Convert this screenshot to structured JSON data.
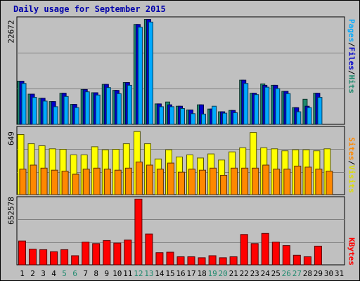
{
  "chart_data": {
    "type": "bar",
    "title": "Daily usage for September 2015",
    "categories": [
      "1",
      "2",
      "3",
      "4",
      "5",
      "6",
      "7",
      "8",
      "9",
      "10",
      "11",
      "12",
      "13",
      "14",
      "15",
      "16",
      "17",
      "18",
      "19",
      "20",
      "21",
      "22",
      "23",
      "24",
      "25",
      "26",
      "27",
      "28",
      "29",
      "30",
      "31"
    ],
    "weekend_days": [
      "5",
      "6",
      "12",
      "13",
      "19",
      "20",
      "26",
      "27"
    ],
    "panels": [
      {
        "name": "hits-files-pages",
        "ymax": 22672,
        "ymax_label": "22672",
        "labels": [
          {
            "text": "Pages",
            "color": "#00aaff"
          },
          {
            "text": "/",
            "color": "#000000"
          },
          {
            "text": "Files",
            "color": "#0000cc"
          },
          {
            "text": "/",
            "color": "#000000"
          },
          {
            "text": "Hits",
            "color": "#1f8a6e"
          }
        ],
        "series": [
          {
            "name": "Hits",
            "color": "#1f8a6e",
            "values": [
              9300,
              6500,
              5600,
              4900,
              6700,
              4300,
              7500,
              6800,
              8600,
              7300,
              9000,
              21500,
              22600,
              4400,
              4800,
              3900,
              3100,
              4200,
              3300,
              2700,
              3000,
              9500,
              6700,
              8700,
              8400,
              7100,
              3600,
              5400,
              6700,
              0,
              0
            ]
          },
          {
            "name": "Files",
            "color": "#0000cc",
            "values": [
              9300,
              6500,
              5600,
              4900,
              6700,
              4300,
              7500,
              6800,
              8600,
              7300,
              9000,
              21500,
              22600,
              4400,
              4200,
              3900,
              3100,
              4200,
              3300,
              2700,
              3000,
              9500,
              6700,
              8400,
              8400,
              7100,
              3600,
              3900,
              6700,
              0,
              0
            ]
          },
          {
            "name": "Pages",
            "color": "#00aaff",
            "values": [
              8800,
              5800,
              5000,
              3800,
              6000,
              3600,
              7000,
              6300,
              7900,
              6600,
              8400,
              20900,
              22000,
              3800,
              3800,
              3400,
              2300,
              2200,
              3900,
              2400,
              2500,
              8800,
              6400,
              8000,
              7700,
              6600,
              2700,
              3600,
              5800,
              0,
              0
            ]
          }
        ]
      },
      {
        "name": "visits-sites",
        "ymax": 649,
        "ymax_label": "649",
        "labels": [
          {
            "text": "Sites",
            "color": "#ff8800"
          },
          {
            "text": "/",
            "color": "#000000"
          },
          {
            "text": "Visits",
            "color": "#dddd00"
          }
        ],
        "series": [
          {
            "name": "Visits",
            "color": "#ffff00",
            "values": [
              590,
              500,
              480,
              450,
              445,
              390,
              390,
              470,
              440,
              445,
              500,
              620,
              500,
              350,
              440,
              370,
              390,
              360,
              400,
              340,
              420,
              460,
              610,
              460,
              450,
              430,
              440,
              440,
              430,
              450,
              0
            ]
          },
          {
            "name": "Sites",
            "color": "#ff8800",
            "values": [
              250,
              290,
              260,
              240,
              230,
              200,
              250,
              260,
              250,
              240,
              260,
              320,
              290,
              250,
              310,
              220,
              250,
              240,
              260,
              190,
              260,
              260,
              260,
              290,
              250,
              250,
              280,
              270,
              250,
              230,
              0
            ]
          }
        ]
      },
      {
        "name": "kbytes",
        "ymax": 652578,
        "ymax_label": "652578",
        "labels": [
          {
            "text": "KBytes",
            "color": "#ff0000"
          }
        ],
        "series": [
          {
            "name": "KBytes",
            "color": "#ff0000",
            "values": [
              235000,
              155000,
              150000,
              130000,
              150000,
              90000,
              225000,
              210000,
              240000,
              215000,
              245000,
              650000,
              305000,
              120000,
              125000,
              80000,
              80000,
              70000,
              90000,
              70000,
              80000,
              300000,
              210000,
              310000,
              225000,
              190000,
              95000,
              80000,
              185000,
              0,
              0
            ]
          }
        ]
      }
    ]
  }
}
